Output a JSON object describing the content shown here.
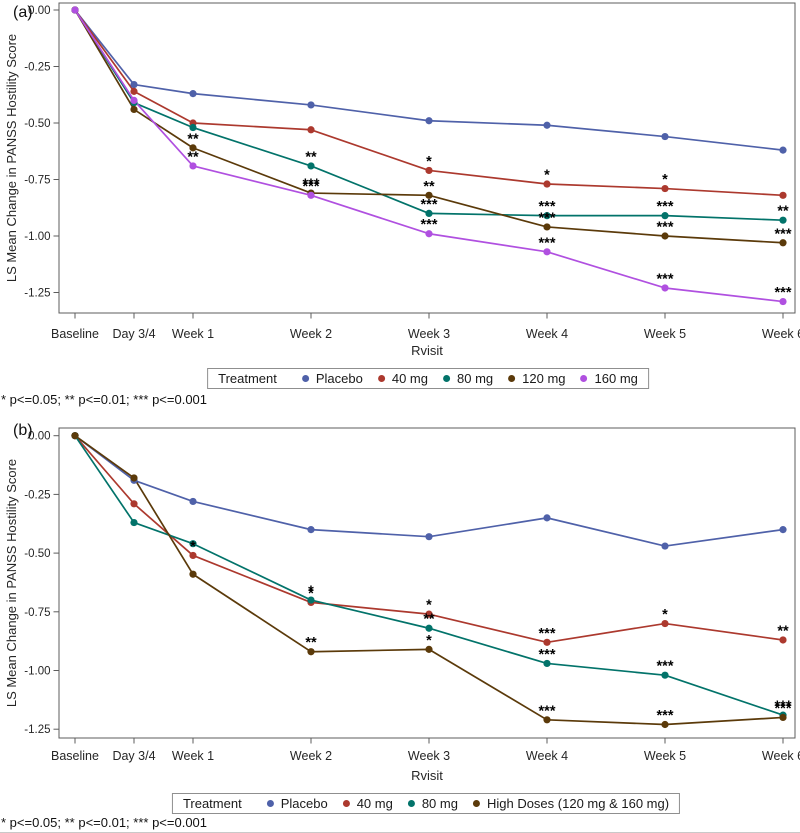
{
  "figure_footnote": "* p<=0.05; ** p<=0.01; *** p<=0.001",
  "chart_data": [
    {
      "panel": "a",
      "type": "line",
      "panel_label": "(a)",
      "xlabel": "Rvisit",
      "ylabel": "LS Mean Change in PANSS Hostility Score",
      "footnote": "* p<=0.05; ** p<=0.01; *** p<=0.001",
      "legend_title": "Treatment",
      "legend_position": "bottom",
      "grid": false,
      "x_categories": [
        "Baseline",
        "Day 3/4",
        "Week 1",
        "Week 2",
        "Week 3",
        "Week 4",
        "Week 5",
        "Week 6"
      ],
      "x_days": [
        0,
        3.5,
        7,
        14,
        21,
        28,
        35,
        42
      ],
      "ylim": [
        -1.37,
        0.03
      ],
      "ytick_values": [
        0,
        -0.25,
        -0.5,
        -0.75,
        -1.0,
        -1.25
      ],
      "ytick_labels": [
        "0.00",
        "-0.25",
        "-0.50",
        "-0.75",
        "-1.00",
        "-1.25"
      ],
      "series": [
        {
          "name": "Placebo",
          "color": "#4f61a9",
          "values": [
            0.0,
            -0.33,
            -0.37,
            -0.42,
            -0.49,
            -0.51,
            -0.56,
            -0.62
          ],
          "annotations": [
            "",
            "",
            "",
            "",
            "",
            "",
            "",
            ""
          ]
        },
        {
          "name": "40 mg",
          "color": "#ac392e",
          "values": [
            0.0,
            -0.36,
            -0.5,
            -0.53,
            -0.71,
            -0.77,
            -0.79,
            -0.82
          ],
          "annotations": [
            "",
            "",
            "",
            "",
            "*",
            "*",
            "*",
            ""
          ]
        },
        {
          "name": "80 mg",
          "color": "#02736a",
          "values": [
            0.0,
            -0.41,
            -0.52,
            -0.69,
            -0.9,
            -0.91,
            -0.91,
            -0.93
          ],
          "annotations": [
            "",
            "",
            "",
            "**",
            "***",
            "***",
            "***",
            "**"
          ]
        },
        {
          "name": "120 mg",
          "color": "#5b3a0a",
          "values": [
            0.0,
            -0.44,
            -0.61,
            -0.81,
            -0.82,
            -0.96,
            -1.0,
            -1.03
          ],
          "annotations": [
            "",
            "",
            "**",
            "***",
            "**",
            "***",
            "***",
            "***"
          ]
        },
        {
          "name": "160 mg",
          "color": "#b050e0",
          "values": [
            0.0,
            -0.4,
            -0.69,
            -0.82,
            -0.99,
            -1.07,
            -1.23,
            -1.29
          ],
          "annotations": [
            "",
            "",
            "**",
            "***",
            "***",
            "***",
            "***",
            "***"
          ]
        }
      ]
    },
    {
      "panel": "b",
      "type": "line",
      "panel_label": "(b)",
      "xlabel": "Rvisit",
      "ylabel": "LS Mean Change in PANSS Hostility Score",
      "footnote": "* p<=0.05; ** p<=0.01; *** p<=0.001",
      "legend_title": "Treatment",
      "legend_position": "bottom",
      "grid": false,
      "x_categories": [
        "Baseline",
        "Day 3/4",
        "Week 1",
        "Week 2",
        "Week 3",
        "Week 4",
        "Week 5",
        "Week 6"
      ],
      "x_days": [
        0,
        3.5,
        7,
        14,
        21,
        28,
        35,
        42
      ],
      "ylim": [
        -1.37,
        0.03
      ],
      "ytick_values": [
        0,
        -0.25,
        -0.5,
        -0.75,
        -1.0,
        -1.25
      ],
      "ytick_labels": [
        "0.00",
        "-0.25",
        "-0.50",
        "-0.75",
        "-1.00",
        "-1.25"
      ],
      "series": [
        {
          "name": "Placebo",
          "color": "#4f61a9",
          "values": [
            0.0,
            -0.19,
            -0.28,
            -0.4,
            -0.43,
            -0.35,
            -0.47,
            -0.4
          ],
          "annotations": [
            "",
            "",
            "",
            "",
            "",
            "",
            "",
            ""
          ]
        },
        {
          "name": "40 mg",
          "color": "#ac392e",
          "values": [
            0.0,
            -0.29,
            -0.51,
            -0.71,
            -0.76,
            -0.88,
            -0.8,
            -0.87
          ],
          "annotations": [
            "",
            "",
            "*",
            "*",
            "*",
            "***",
            "*",
            "**"
          ]
        },
        {
          "name": "80 mg",
          "color": "#02736a",
          "values": [
            0.0,
            -0.37,
            -0.46,
            -0.7,
            -0.82,
            -0.97,
            -1.02,
            -1.19
          ],
          "annotations": [
            "",
            "",
            "",
            "*",
            "**",
            "***",
            "***",
            "***"
          ]
        },
        {
          "name": "High Doses (120 mg & 160 mg)",
          "color": "#5b3a0a",
          "values": [
            0.0,
            -0.18,
            -0.59,
            -0.92,
            -0.91,
            -1.21,
            -1.23,
            -1.2
          ],
          "annotations": [
            "",
            "",
            "",
            "**",
            "*",
            "***",
            "***",
            "***"
          ]
        }
      ]
    }
  ]
}
